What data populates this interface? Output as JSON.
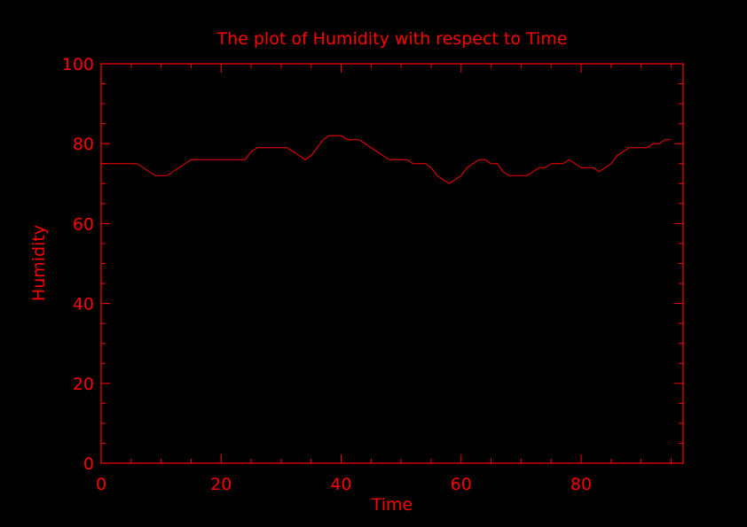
{
  "colors": {
    "background": "#000000",
    "foreground": "#ff0000"
  },
  "chart_data": {
    "type": "line",
    "title": "The plot of Humidity with respect to Time",
    "xlabel": "Time",
    "ylabel": "Humidity",
    "xlim": [
      0,
      97
    ],
    "ylim": [
      0,
      100
    ],
    "xticks": [
      0,
      20,
      40,
      60,
      80
    ],
    "yticks": [
      0,
      20,
      40,
      60,
      80,
      100
    ],
    "grid": false,
    "series": [
      {
        "x": [
          0,
          1,
          2,
          3,
          4,
          5,
          6,
          7,
          8,
          9,
          10,
          11,
          12,
          13,
          14,
          15,
          16,
          17,
          18,
          19,
          20,
          21,
          22,
          23,
          24,
          25,
          26,
          27,
          28,
          29,
          30,
          31,
          32,
          33,
          34,
          35,
          36,
          37,
          38,
          39,
          40,
          41,
          42,
          43,
          44,
          45,
          46,
          47,
          48,
          49,
          50,
          51,
          52,
          53,
          54,
          55,
          56,
          57,
          58,
          59,
          60,
          61,
          62,
          63,
          64,
          65,
          66,
          67,
          68,
          69,
          70,
          71,
          72,
          73,
          74,
          75,
          76,
          77,
          78,
          79,
          80,
          81,
          82,
          83,
          84,
          85,
          86,
          87,
          88,
          89,
          90,
          91,
          92,
          93,
          94,
          95
        ],
        "y": [
          75,
          75,
          75,
          75,
          75,
          75,
          75,
          74,
          73,
          72,
          72,
          72,
          73,
          74,
          75,
          76,
          76,
          76,
          76,
          76,
          76,
          76,
          76,
          76,
          76,
          78,
          79,
          79,
          79,
          79,
          79,
          79,
          78,
          77,
          76,
          77,
          79,
          81,
          82,
          82,
          82,
          81,
          81,
          81,
          80,
          79,
          78,
          77,
          76,
          76,
          76,
          76,
          75,
          75,
          75,
          74,
          72,
          71,
          70,
          71,
          72,
          74,
          75,
          76,
          76,
          75,
          75,
          73,
          72,
          72,
          72,
          72,
          73,
          74,
          74,
          75,
          75,
          75,
          76,
          75,
          74,
          74,
          74,
          73,
          74,
          75,
          77,
          78,
          79,
          79,
          79,
          79,
          80,
          80,
          81,
          81
        ]
      }
    ]
  }
}
